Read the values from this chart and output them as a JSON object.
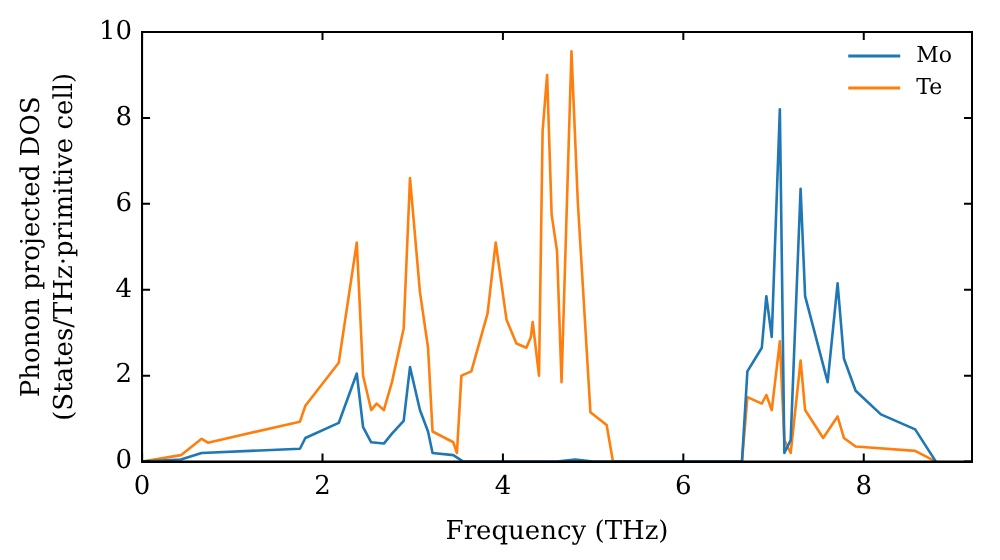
{
  "chart_data": {
    "type": "line",
    "xlabel": "Frequency (THz)",
    "ylabel": "Phonon projected DOS\n(States/THz·primitive cell)",
    "xlim": [
      0,
      9.2
    ],
    "ylim": [
      0,
      10
    ],
    "xticks": [
      0,
      2,
      4,
      6,
      8
    ],
    "yticks": [
      0,
      2,
      4,
      6,
      8,
      10
    ],
    "grid": false,
    "legend": "top right",
    "marker": "none",
    "line_style": "solid",
    "series": [
      {
        "name": "Mo",
        "color": "#1f77b4",
        "x": [
          0,
          0.43,
          0.66,
          1.75,
          1.81,
          2.18,
          2.38,
          2.45,
          2.54,
          2.68,
          2.77,
          2.9,
          2.97,
          3.08,
          3.17,
          3.22,
          3.45,
          3.56,
          4.6,
          4.8,
          5.0,
          6.65,
          6.71,
          6.87,
          6.92,
          6.98,
          7.07,
          7.12,
          7.19,
          7.3,
          7.35,
          7.6,
          7.71,
          7.78,
          7.91,
          8.19,
          8.57,
          8.8
        ],
        "values": [
          0,
          0.05,
          0.2,
          0.3,
          0.55,
          0.9,
          2.05,
          0.8,
          0.45,
          0.42,
          0.65,
          0.95,
          2.2,
          1.2,
          0.7,
          0.2,
          0.15,
          0,
          0,
          0.05,
          0,
          0,
          2.1,
          2.65,
          3.85,
          2.9,
          8.2,
          0.2,
          0.5,
          6.35,
          3.85,
          1.85,
          4.15,
          2.4,
          1.65,
          1.1,
          0.75,
          0
        ]
      },
      {
        "name": "Te",
        "color": "#ff7f0e",
        "x": [
          0,
          0.43,
          0.66,
          0.73,
          1.75,
          1.81,
          2.18,
          2.38,
          2.45,
          2.54,
          2.6,
          2.68,
          2.77,
          2.9,
          2.97,
          3.08,
          3.17,
          3.22,
          3.45,
          3.49,
          3.54,
          3.65,
          3.83,
          3.92,
          4.04,
          4.15,
          4.26,
          4.31,
          4.33,
          4.4,
          4.44,
          4.49,
          4.54,
          4.6,
          4.65,
          4.76,
          4.83,
          4.92,
          4.97,
          5.15,
          5.22,
          6.65,
          6.71,
          6.87,
          6.92,
          6.98,
          7.07,
          7.12,
          7.19,
          7.3,
          7.35,
          7.55,
          7.71,
          7.78,
          7.91,
          8.57,
          8.8
        ],
        "values": [
          0,
          0.15,
          0.53,
          0.44,
          0.93,
          1.3,
          2.3,
          5.1,
          2.0,
          1.2,
          1.35,
          1.2,
          1.85,
          3.1,
          6.6,
          3.95,
          2.65,
          0.7,
          0.45,
          0.2,
          2.0,
          2.1,
          3.45,
          5.1,
          3.3,
          2.75,
          2.65,
          2.9,
          3.25,
          2.0,
          7.7,
          9.0,
          5.75,
          4.9,
          1.85,
          9.55,
          6.05,
          2.9,
          1.15,
          0.85,
          0,
          0,
          1.5,
          1.35,
          1.55,
          1.2,
          2.8,
          0.5,
          0.2,
          2.35,
          1.2,
          0.55,
          1.05,
          0.55,
          0.35,
          0.25,
          0
        ]
      }
    ]
  }
}
